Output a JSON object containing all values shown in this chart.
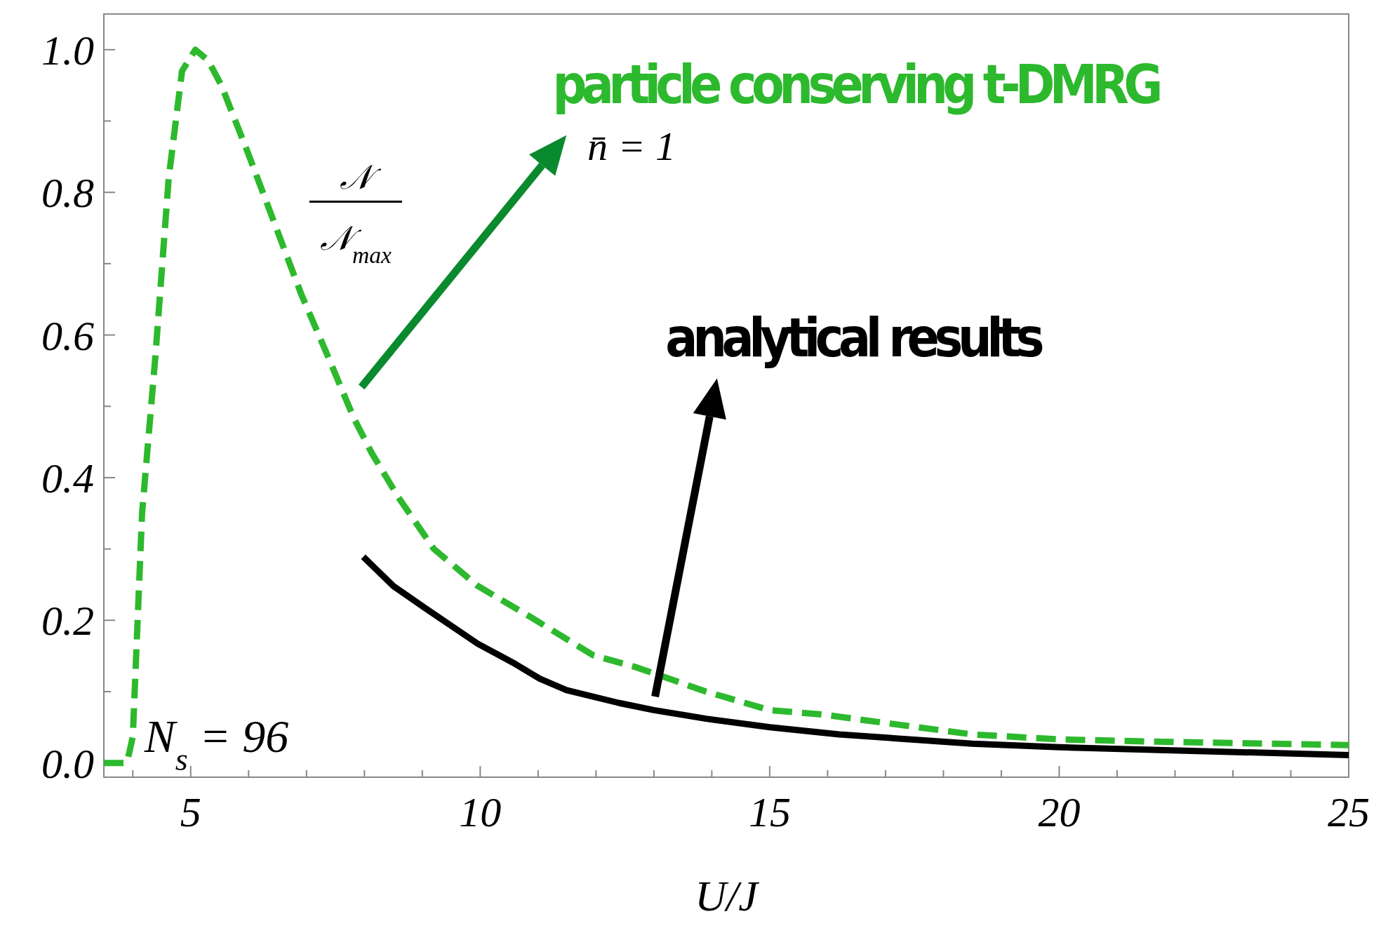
{
  "chart_data": {
    "type": "line",
    "xlabel": "U/J",
    "xlim": [
      3.5,
      25
    ],
    "ylim": [
      -0.02,
      1.05
    ],
    "xticks": [
      {
        "value": 4,
        "label": null
      },
      5,
      {
        "value": 6,
        "label": null
      },
      {
        "value": 7,
        "label": null
      },
      {
        "value": 8,
        "label": null
      },
      {
        "value": 9,
        "label": null
      },
      10,
      {
        "value": 11,
        "label": null
      },
      {
        "value": 12,
        "label": null
      },
      {
        "value": 13,
        "label": null
      },
      {
        "value": 14,
        "label": null
      },
      15,
      {
        "value": 16,
        "label": null
      },
      {
        "value": 17,
        "label": null
      },
      {
        "value": 18,
        "label": null
      },
      {
        "value": 19,
        "label": null
      },
      20,
      {
        "value": 21,
        "label": null
      },
      {
        "value": 22,
        "label": null
      },
      {
        "value": 23,
        "label": null
      },
      {
        "value": 24,
        "label": null
      },
      25
    ],
    "yticks": [
      {
        "value": 0,
        "label": "0.0"
      },
      {
        "value": 0.1,
        "label": null
      },
      {
        "value": 0.2,
        "label": "0.2"
      },
      {
        "value": 0.3,
        "label": null
      },
      {
        "value": 0.4,
        "label": "0.4"
      },
      {
        "value": 0.5,
        "label": null
      },
      {
        "value": 0.6,
        "label": "0.6"
      },
      {
        "value": 0.7,
        "label": null
      },
      {
        "value": 0.8,
        "label": "0.8"
      },
      {
        "value": 0.9,
        "label": null
      },
      {
        "value": 1,
        "label": "1.0"
      }
    ],
    "grid": false,
    "annotations": [
      "n̄ = 1",
      "𝒩",
      "𝒩$_{max}$",
      "N$_{s}$ = 96"
    ],
    "series": [
      {
        "name": "particle conserving t-DMRG",
        "color": "#2db92d",
        "line_style": "dashed",
        "x": [
          3.5,
          3.9,
          4.0,
          4.16,
          4.39,
          4.62,
          4.85,
          5.08,
          5.3,
          5.53,
          5.99,
          6.45,
          6.91,
          7.37,
          7.82,
          8.13,
          8.59,
          9.2,
          9.96,
          10.88,
          11.95,
          12.7,
          13.9,
          15.0,
          15.9,
          17,
          18.5,
          20,
          21.6,
          25
        ],
        "values": [
          0,
          0,
          0.037,
          0.35,
          0.57,
          0.82,
          0.97,
          1.0,
          0.985,
          0.95,
          0.855,
          0.756,
          0.657,
          0.57,
          0.483,
          0.434,
          0.372,
          0.3,
          0.248,
          0.204,
          0.151,
          0.134,
          0.1,
          0.074,
          0.068,
          0.056,
          0.04,
          0.033,
          0.03,
          0.025
        ]
      },
      {
        "name": "analytical results",
        "color": "#000000",
        "line_style": "solid",
        "x": [
          7.98,
          8.5,
          9.05,
          9.96,
          10.6,
          11.03,
          11.49,
          12.4,
          13.0,
          13.9,
          15,
          16.2,
          18.5,
          20,
          25
        ],
        "values": [
          0.289,
          0.248,
          0.217,
          0.167,
          0.139,
          0.118,
          0.102,
          0.084,
          0.074,
          0.062,
          0.05,
          0.04,
          0.027,
          0.022,
          0.011
        ]
      }
    ]
  }
}
